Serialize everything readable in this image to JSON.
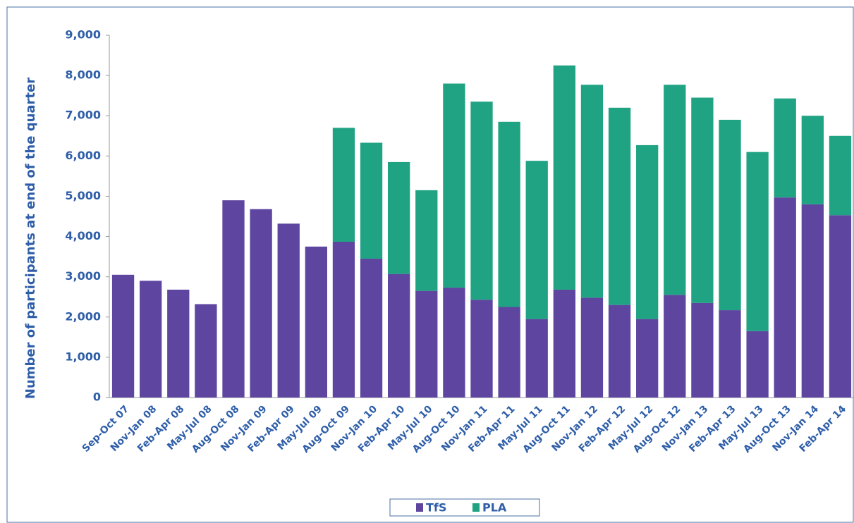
{
  "chart_data": {
    "type": "stacked_bar",
    "y_label": "Number of participants at end of the quarter",
    "categories": [
      "Sep-Oct 07",
      "Nov-Jan 08",
      "Feb-Apr 08",
      "May-Jul 08",
      "Aug-Oct 08",
      "Nov-Jan 09",
      "Feb-Apr 09",
      "May-Jul 09",
      "Aug-Oct 09",
      "Nov-Jan 10",
      "Feb-Apr 10",
      "May-Jul 10",
      "Aug-Oct 10",
      "Nov-Jan 11",
      "Feb-Apr 11",
      "May-Jul 11",
      "Aug-Oct 11",
      "Nov-Jan 12",
      "Feb-Apr 12",
      "May-Jul 12",
      "Aug-Oct 12",
      "Nov-Jan 13",
      "Feb-Apr 13",
      "May-Jul 13",
      "Aug-Oct 13",
      "Nov-Jan 14",
      "Feb-Apr 14"
    ],
    "series": [
      {
        "name": "TfS",
        "color": "#5d45a0",
        "values": [
          3050,
          2900,
          2680,
          2320,
          4900,
          4680,
          4320,
          3750,
          3870,
          3450,
          3070,
          2650,
          2730,
          2430,
          2250,
          1950,
          2680,
          2480,
          2300,
          1950,
          2550,
          2350,
          2170,
          1650,
          4970,
          4800,
          4530
        ]
      },
      {
        "name": "PLA",
        "color": "#1fa383",
        "values": [
          0,
          0,
          0,
          0,
          0,
          0,
          0,
          0,
          2830,
          2880,
          2780,
          2500,
          5070,
          4920,
          4600,
          3930,
          5570,
          5290,
          4900,
          4320,
          5220,
          5100,
          4730,
          4450,
          2460,
          2200,
          1970
        ]
      }
    ],
    "ylim": [
      0,
      9000
    ],
    "yticks": [
      0,
      {
        "value": 1000,
        "label": "1,000"
      },
      {
        "value": 2000,
        "label": "2,000"
      },
      {
        "value": 3000,
        "label": "3,000"
      },
      {
        "value": 4000,
        "label": "4,000"
      },
      {
        "value": 5000,
        "label": "5,000"
      },
      {
        "value": 6000,
        "label": "6,000"
      },
      {
        "value": 7000,
        "label": "7,000"
      },
      {
        "value": 8000,
        "label": "8,000"
      },
      {
        "value": 9000,
        "label": "9,000"
      }
    ],
    "legend": "bottom"
  }
}
